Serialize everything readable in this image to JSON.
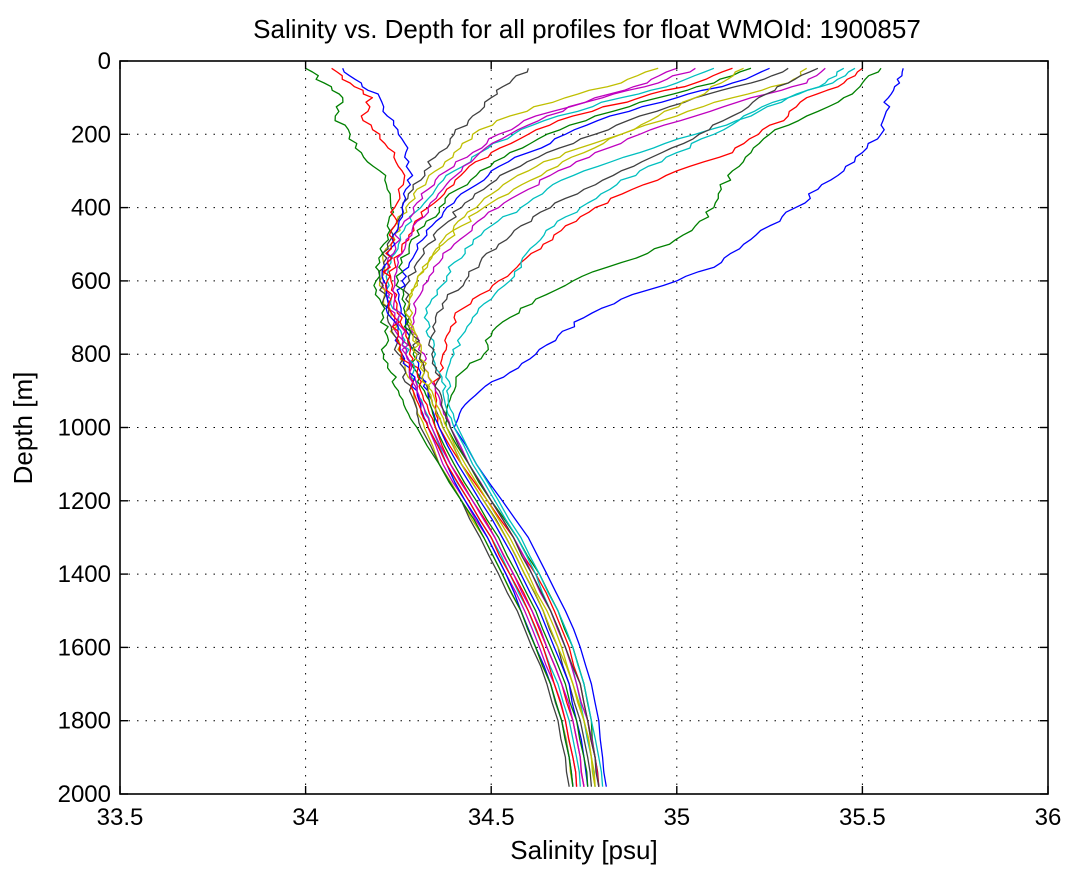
{
  "chart_data": {
    "type": "line",
    "title": "Salinity vs. Depth for all profiles for float WMOId: 1900857",
    "xlabel": "Salinity [psu]",
    "ylabel": "Depth [m]",
    "xlim": [
      33.5,
      36
    ],
    "ylim": [
      0,
      2000
    ],
    "y_reversed": true,
    "grid": true,
    "xticks": [
      33.5,
      34,
      34.5,
      35,
      35.5,
      36
    ],
    "xtick_labels": [
      "33.5",
      "34",
      "34.5",
      "35",
      "35.5",
      "36"
    ],
    "yticks": [
      0,
      200,
      400,
      600,
      800,
      1000,
      1200,
      1400,
      1600,
      1800,
      2000
    ],
    "ytick_labels": [
      "0",
      "200",
      "400",
      "600",
      "800",
      "1000",
      "1200",
      "1400",
      "1600",
      "1800",
      "2000"
    ],
    "series_colors": [
      "#0000ff",
      "#008000",
      "#ff0000",
      "#00bfbf",
      "#bf00bf",
      "#bfbf00",
      "#404040"
    ],
    "depth": [
      20,
      60,
      100,
      150,
      200,
      250,
      300,
      350,
      400,
      450,
      500,
      550,
      600,
      650,
      700,
      750,
      800,
      850,
      900,
      950,
      1000,
      1100,
      1200,
      1300,
      1400,
      1500,
      1600,
      1700,
      1800,
      1900,
      1980
    ],
    "series": [
      {
        "values": [
          35.61,
          35.6,
          35.57,
          35.56,
          35.55,
          35.5,
          35.45,
          35.38,
          35.32,
          35.25,
          35.18,
          35.12,
          35.0,
          34.85,
          34.75,
          34.68,
          34.62,
          34.55,
          34.47,
          34.42,
          34.4,
          34.46,
          34.53,
          34.6,
          34.65,
          34.7,
          34.74,
          34.77,
          34.79,
          34.8,
          34.81
        ]
      },
      {
        "values": [
          35.55,
          35.5,
          35.45,
          35.35,
          35.25,
          35.2,
          35.15,
          35.12,
          35.1,
          35.05,
          34.98,
          34.85,
          34.72,
          34.62,
          34.55,
          34.5,
          34.48,
          34.42,
          34.4,
          34.38,
          34.38,
          34.44,
          34.5,
          34.57,
          34.63,
          34.68,
          34.72,
          34.75,
          34.77,
          34.78,
          34.79
        ]
      },
      {
        "values": [
          35.5,
          35.45,
          35.35,
          35.3,
          35.22,
          35.15,
          35.0,
          34.88,
          34.78,
          34.7,
          34.64,
          34.58,
          34.52,
          34.45,
          34.4,
          34.38,
          34.37,
          34.36,
          34.35,
          34.35,
          34.36,
          34.42,
          34.49,
          34.56,
          34.62,
          34.67,
          34.71,
          34.74,
          34.76,
          34.78,
          34.79
        ]
      },
      {
        "values": [
          35.45,
          35.4,
          35.3,
          35.2,
          35.05,
          34.9,
          34.75,
          34.65,
          34.58,
          34.5,
          34.45,
          34.4,
          34.38,
          34.34,
          34.32,
          34.33,
          34.35,
          34.36,
          34.37,
          34.38,
          34.4,
          34.45,
          34.51,
          34.57,
          34.62,
          34.66,
          34.7,
          34.73,
          34.75,
          34.77,
          34.78
        ]
      },
      {
        "values": [
          35.4,
          35.35,
          35.2,
          35.05,
          34.9,
          34.78,
          34.68,
          34.6,
          34.52,
          34.45,
          34.4,
          34.36,
          34.33,
          34.3,
          34.29,
          34.3,
          34.32,
          34.33,
          34.35,
          34.37,
          34.39,
          34.44,
          34.5,
          34.56,
          34.61,
          34.66,
          34.7,
          34.73,
          34.76,
          34.78,
          34.79
        ]
      },
      {
        "values": [
          35.35,
          35.3,
          35.15,
          35.0,
          34.85,
          34.7,
          34.6,
          34.52,
          34.46,
          34.4,
          34.36,
          34.33,
          34.3,
          34.28,
          34.28,
          34.3,
          34.31,
          34.33,
          34.34,
          34.36,
          34.38,
          34.43,
          34.49,
          34.55,
          34.6,
          34.65,
          34.69,
          34.72,
          34.75,
          34.77,
          34.78
        ]
      },
      {
        "values": [
          35.3,
          35.2,
          35.05,
          34.9,
          34.78,
          34.65,
          34.55,
          34.48,
          34.42,
          34.37,
          34.33,
          34.3,
          34.28,
          34.27,
          34.28,
          34.29,
          34.31,
          34.32,
          34.33,
          34.35,
          34.37,
          34.42,
          34.48,
          34.54,
          34.59,
          34.64,
          34.68,
          34.71,
          34.74,
          34.76,
          34.77
        ]
      },
      {
        "values": [
          35.25,
          35.15,
          35.0,
          34.82,
          34.7,
          34.6,
          34.5,
          34.44,
          34.38,
          34.34,
          34.3,
          34.28,
          34.26,
          34.25,
          34.27,
          34.28,
          34.3,
          34.31,
          34.33,
          34.34,
          34.36,
          34.41,
          34.47,
          34.53,
          34.58,
          34.63,
          34.67,
          34.71,
          34.73,
          34.75,
          34.76
        ]
      },
      {
        "values": [
          35.2,
          35.1,
          34.95,
          34.78,
          34.65,
          34.55,
          34.47,
          34.41,
          34.36,
          34.32,
          34.28,
          34.26,
          34.25,
          34.26,
          34.27,
          34.28,
          34.29,
          34.3,
          34.32,
          34.34,
          34.35,
          34.4,
          34.46,
          34.52,
          34.57,
          34.62,
          34.66,
          34.7,
          34.73,
          34.75,
          34.76
        ]
      },
      {
        "values": [
          35.15,
          35.05,
          34.9,
          34.72,
          34.6,
          34.5,
          34.43,
          34.38,
          34.33,
          34.29,
          34.26,
          34.24,
          34.23,
          34.24,
          34.26,
          34.27,
          34.28,
          34.3,
          34.31,
          34.33,
          34.35,
          34.39,
          34.45,
          34.51,
          34.56,
          34.61,
          34.65,
          34.69,
          34.72,
          34.74,
          34.75
        ]
      },
      {
        "values": [
          35.1,
          35.0,
          34.85,
          34.68,
          34.56,
          34.47,
          34.4,
          34.35,
          34.31,
          34.27,
          34.25,
          34.23,
          34.22,
          34.23,
          34.25,
          34.26,
          34.27,
          34.29,
          34.3,
          34.32,
          34.34,
          34.38,
          34.44,
          34.5,
          34.55,
          34.6,
          34.64,
          34.68,
          34.71,
          34.73,
          34.74
        ]
      },
      {
        "values": [
          35.05,
          34.95,
          34.8,
          34.62,
          34.52,
          34.45,
          34.38,
          34.33,
          34.29,
          34.26,
          34.24,
          34.22,
          34.21,
          34.22,
          34.24,
          34.25,
          34.27,
          34.28,
          34.3,
          34.31,
          34.33,
          34.37,
          34.43,
          34.49,
          34.54,
          34.59,
          34.63,
          34.67,
          34.7,
          34.72,
          34.73
        ]
      },
      {
        "values": [
          34.95,
          34.85,
          34.7,
          34.55,
          34.45,
          34.4,
          34.35,
          34.3,
          34.27,
          34.25,
          34.23,
          34.21,
          34.2,
          34.21,
          34.23,
          34.24,
          34.26,
          34.27,
          34.29,
          34.3,
          34.32,
          34.36,
          34.42,
          34.48,
          34.53,
          34.58,
          34.62,
          34.66,
          34.69,
          34.71,
          34.72
        ]
      },
      {
        "values": [
          34.6,
          34.55,
          34.5,
          34.45,
          34.4,
          34.36,
          34.32,
          34.29,
          34.26,
          34.24,
          34.22,
          34.21,
          34.2,
          34.21,
          34.22,
          34.24,
          34.25,
          34.27,
          34.28,
          34.3,
          34.31,
          34.36,
          34.42,
          34.47,
          34.52,
          34.57,
          34.61,
          34.65,
          34.68,
          34.7,
          34.71
        ]
      },
      {
        "values": [
          34.1,
          34.15,
          34.2,
          34.22,
          34.25,
          34.27,
          34.28,
          34.27,
          34.26,
          34.25,
          34.24,
          34.22,
          34.21,
          34.22,
          34.23,
          34.25,
          34.26,
          34.28,
          34.3,
          34.31,
          34.33,
          34.38,
          34.43,
          34.49,
          34.54,
          34.58,
          34.62,
          34.66,
          34.69,
          34.71,
          34.72
        ]
      },
      {
        "values": [
          34.0,
          34.05,
          34.1,
          34.08,
          34.12,
          34.15,
          34.2,
          34.22,
          34.23,
          34.22,
          34.21,
          34.2,
          34.19,
          34.2,
          34.21,
          34.22,
          34.21,
          34.23,
          34.25,
          34.27,
          34.3,
          34.36,
          34.42,
          34.48,
          34.53,
          34.58,
          34.62,
          34.66,
          34.69,
          34.71,
          34.72
        ]
      },
      {
        "values": [
          34.07,
          34.12,
          34.18,
          34.15,
          34.2,
          34.24,
          34.26,
          34.25,
          34.24,
          34.24,
          34.23,
          34.22,
          34.22,
          34.23,
          34.24,
          34.25,
          34.26,
          34.28,
          34.29,
          34.31,
          34.33,
          34.38,
          34.44,
          34.5,
          34.55,
          34.6,
          34.64,
          34.67,
          34.7,
          34.72,
          34.73
        ]
      },
      {
        "values": [
          35.48,
          35.42,
          35.3,
          35.18,
          35.1,
          35.0,
          34.9,
          34.82,
          34.74,
          34.67,
          34.62,
          34.58,
          34.55,
          34.5,
          34.45,
          34.42,
          34.4,
          34.38,
          34.38,
          34.39,
          34.41,
          34.46,
          34.52,
          34.58,
          34.63,
          34.68,
          34.72,
          34.75,
          34.77,
          34.79,
          34.8
        ]
      },
      {
        "values": [
          35.0,
          34.92,
          34.78,
          34.65,
          34.55,
          34.47,
          34.42,
          34.37,
          34.33,
          34.29,
          34.27,
          34.25,
          34.24,
          34.24,
          34.25,
          34.26,
          34.27,
          34.28,
          34.3,
          34.32,
          34.34,
          34.39,
          34.45,
          34.51,
          34.56,
          34.61,
          34.65,
          34.69,
          34.72,
          34.74,
          34.75
        ]
      },
      {
        "values": [
          35.18,
          35.12,
          35.05,
          34.95,
          34.85,
          34.75,
          34.65,
          34.56,
          34.48,
          34.42,
          34.37,
          34.33,
          34.3,
          34.28,
          34.28,
          34.29,
          34.3,
          34.32,
          34.33,
          34.35,
          34.37,
          34.42,
          34.48,
          34.54,
          34.59,
          34.64,
          34.68,
          34.72,
          34.75,
          34.77,
          34.78
        ]
      },
      {
        "values": [
          35.38,
          35.3,
          35.22,
          35.15,
          35.06,
          34.96,
          34.85,
          34.75,
          34.66,
          34.58,
          34.52,
          34.47,
          34.43,
          34.38,
          34.35,
          34.34,
          34.34,
          34.35,
          34.36,
          34.37,
          34.39,
          34.44,
          34.5,
          34.56,
          34.61,
          34.66,
          34.7,
          34.74,
          34.76,
          34.78,
          34.79
        ]
      }
    ]
  }
}
